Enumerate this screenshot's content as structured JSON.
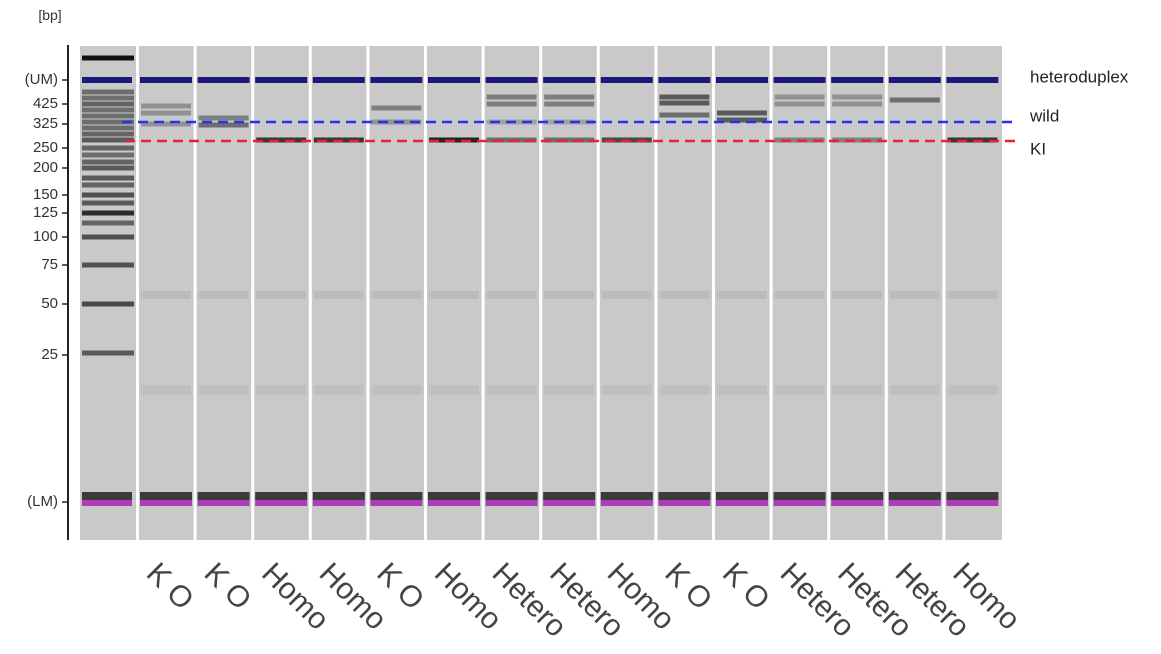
{
  "axis": {
    "unit": "[bp]",
    "ticks": [
      "(UM)",
      "425",
      "325",
      "250",
      "200",
      "150",
      "125",
      "100",
      "75",
      "50",
      "25",
      "(LM)"
    ]
  },
  "lanes": [
    "K O",
    "K O",
    "Homo",
    "Homo",
    "K O",
    "Homo",
    "Hetero",
    "Hetero",
    "Homo",
    "K O",
    "K O",
    "Hetero",
    "Hetero",
    "Hetero",
    "Homo"
  ],
  "annotations": [
    "heteroduplex",
    "wild",
    "KI"
  ]
}
